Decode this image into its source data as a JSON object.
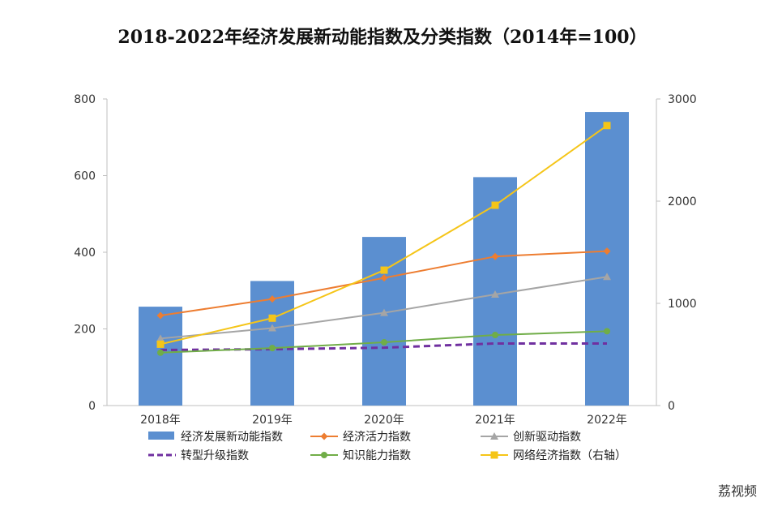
{
  "title": "2018-2022年经济发展新动能指数及分类指数（2014年=100）",
  "watermark": "荔视频",
  "chart_data": {
    "type": "bar",
    "title": "2018-2022年经济发展新动能指数及分类指数（2014年=100）",
    "categories": [
      "2018年",
      "2019年",
      "2020年",
      "2021年",
      "2022年"
    ],
    "y_left": {
      "range": [
        0,
        800
      ],
      "ticks": [
        0,
        200,
        400,
        600,
        800
      ]
    },
    "y_right": {
      "range": [
        0,
        3000
      ],
      "ticks": [
        0,
        1000,
        2000,
        3000
      ]
    },
    "grid": false,
    "legend_position": "bottom",
    "series": [
      {
        "name": "经济发展新动能指数",
        "type": "bar",
        "axis": "left",
        "color": "#5b8fd0",
        "values": [
          258,
          325,
          440,
          596,
          766
        ]
      },
      {
        "name": "经济活力指数",
        "type": "line",
        "axis": "left",
        "color": "#ed7d31",
        "marker": "diamond",
        "dash": "solid",
        "values": [
          235,
          278,
          333,
          389,
          403
        ]
      },
      {
        "name": "创新驱动指数",
        "type": "line",
        "axis": "left",
        "color": "#a5a5a5",
        "marker": "triangle",
        "dash": "solid",
        "values": [
          175,
          202,
          242,
          290,
          336
        ]
      },
      {
        "name": "转型升级指数",
        "type": "line",
        "axis": "left",
        "color": "#7030a0",
        "marker": "none",
        "dash": "dashed",
        "values": [
          145,
          147,
          151,
          162,
          162
        ]
      },
      {
        "name": "知识能力指数",
        "type": "line",
        "axis": "left",
        "color": "#70ad47",
        "marker": "circle",
        "dash": "solid",
        "values": [
          138,
          150,
          165,
          184,
          194
        ]
      },
      {
        "name": "网络经济指数（右轴）",
        "type": "line",
        "axis": "right",
        "color": "#f5c518",
        "marker": "square",
        "dash": "solid",
        "values": [
          600,
          855,
          1325,
          1960,
          2740
        ]
      }
    ]
  }
}
